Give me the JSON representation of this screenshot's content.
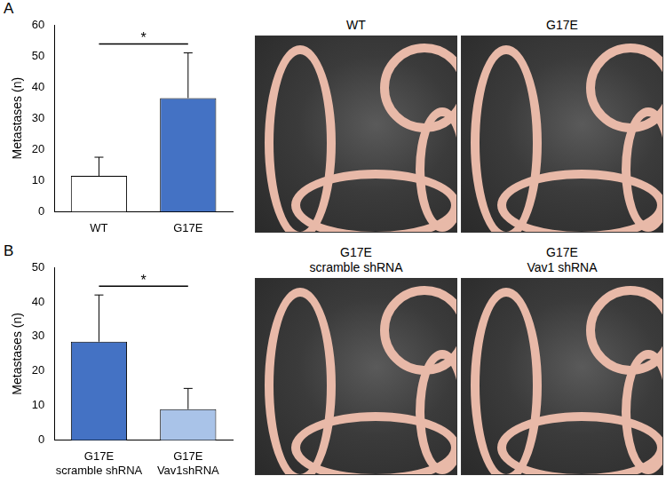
{
  "chart_data": [
    {
      "type": "bar",
      "panel": "A",
      "y_label": "Metastases (n)",
      "categories": [
        "WT",
        "G17E"
      ],
      "values": [
        11.5,
        36.5
      ],
      "errors": [
        6,
        14.5
      ],
      "colors": [
        "#ffffff",
        "#4472c4"
      ],
      "ylim": [
        0,
        60
      ],
      "yticks": [
        0,
        10,
        20,
        30,
        40,
        50,
        60
      ],
      "grid": false,
      "annotations": [
        {
          "text": "*",
          "between": [
            0,
            1
          ]
        }
      ],
      "images": [
        {
          "title": "WT"
        },
        {
          "title": "G17E"
        }
      ]
    },
    {
      "type": "bar",
      "panel": "B",
      "y_label": "Metastases (n)",
      "categories": [
        "G17E\nscramble shRNA",
        "G17E\nVav1shRNA"
      ],
      "values": [
        28.5,
        9
      ],
      "errors": [
        13.5,
        6
      ],
      "colors": [
        "#4472c4",
        "#a9c3e8"
      ],
      "ylim": [
        0,
        50
      ],
      "yticks": [
        0,
        10,
        20,
        30,
        40,
        50
      ],
      "grid": false,
      "annotations": [
        {
          "text": "*",
          "between": [
            0,
            1
          ]
        }
      ],
      "images": [
        {
          "title": "G17E\nscramble shRNA"
        },
        {
          "title": "G17E\nVav1 shRNA"
        }
      ]
    }
  ]
}
